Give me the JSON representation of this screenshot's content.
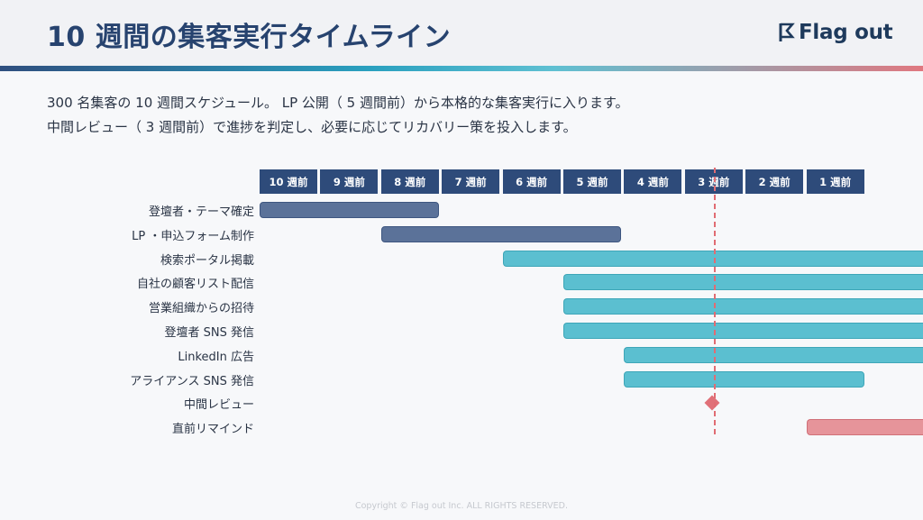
{
  "header": {
    "title": "10 週間の集客実行タイムライン",
    "logo_text": "Flag out"
  },
  "description": {
    "line1": "300 名集客の 10 週間スケジュール。 LP 公開（ 5 週間前）から本格的な集客実行に入ります。",
    "line2": "中間レビュー（ 3 週間前）で進捗を判定し、必要に応じてリカバリー策を投入します。"
  },
  "weeks": [
    "10 週前",
    "9 週前",
    "8 週前",
    "7 週前",
    "6 週前",
    "5 週前",
    "4 週前",
    "3 週前",
    "2 週前",
    "1 週前"
  ],
  "tasks": [
    {
      "label": "登壇者・テーマ確定",
      "type": "bar",
      "start": 0,
      "end": 3,
      "style": "navy"
    },
    {
      "label": "LP ・申込フォーム制作",
      "type": "bar",
      "start": 2,
      "end": 6,
      "style": "navy"
    },
    {
      "label": "検索ポータル掲載",
      "type": "bar",
      "start": 4,
      "end": 11,
      "style": "teal"
    },
    {
      "label": "自社の顧客リスト配信",
      "type": "bar",
      "start": 5,
      "end": 11,
      "style": "teal"
    },
    {
      "label": "営業組織からの招待",
      "type": "bar",
      "start": 5,
      "end": 11,
      "style": "teal"
    },
    {
      "label": "登壇者 SNS 発信",
      "type": "bar",
      "start": 5,
      "end": 11,
      "style": "teal"
    },
    {
      "label": "LinkedIn 広告",
      "type": "bar",
      "start": 6,
      "end": 11,
      "style": "teal"
    },
    {
      "label": "アライアンス SNS 発信",
      "type": "bar",
      "start": 6,
      "end": 10,
      "style": "teal"
    },
    {
      "label": "中間レビュー",
      "type": "milestone",
      "at": 7.45,
      "style": "pink"
    },
    {
      "label": "直前リマインド",
      "type": "bar",
      "start": 9,
      "end": 11,
      "style": "pink"
    }
  ],
  "review_marker_week": 7.5,
  "colors": {
    "navy": "#2e4b7a",
    "teal": "#5bbfd0",
    "pink": "#e6949a",
    "review_line": "#e06c73"
  },
  "footer": {
    "copyright": "Copyright © Flag out Inc. ALL RIGHTS RESERVED."
  }
}
